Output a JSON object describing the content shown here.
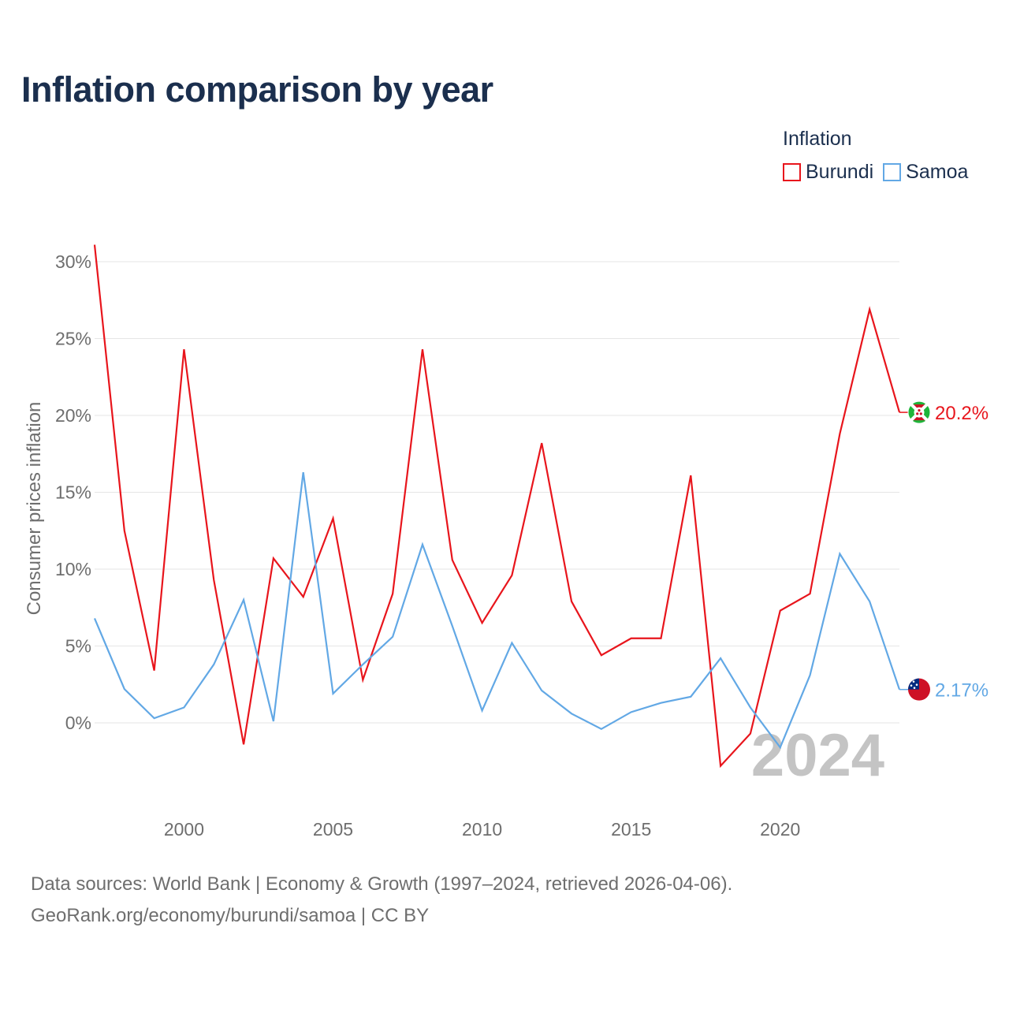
{
  "header": {
    "title": "Inflation comparison by year"
  },
  "legend": {
    "title": "Inflation",
    "items": [
      {
        "label": "Burundi",
        "color": "#e8151c"
      },
      {
        "label": "Samoa",
        "color": "#62a8e5"
      }
    ]
  },
  "footer": {
    "source": "Data sources: World Bank | Economy & Growth (1997–2024, retrieved 2026-04-06).",
    "credit": "GeoRank.org/economy/burundi/samoa | CC BY"
  },
  "chart_data": {
    "type": "line",
    "title": "Inflation comparison by year",
    "xlabel": "",
    "ylabel": "Consumer prices inflation",
    "x": [
      1997,
      1998,
      1999,
      2000,
      2001,
      2002,
      2003,
      2004,
      2005,
      2006,
      2007,
      2008,
      2009,
      2010,
      2011,
      2012,
      2013,
      2014,
      2015,
      2016,
      2017,
      2018,
      2019,
      2020,
      2021,
      2022,
      2023,
      2024
    ],
    "xticks": [
      "2000",
      "2005",
      "2010",
      "2015",
      "2020"
    ],
    "yticks": [
      "0%",
      "5%",
      "10%",
      "15%",
      "20%",
      "25%",
      "30%"
    ],
    "ylim": [
      -5.1,
      30
    ],
    "grid": true,
    "year_watermark": "2024",
    "series": [
      {
        "name": "Burundi",
        "color": "#e8151c",
        "end_label": "20.2%",
        "flag": "burundi-flag-icon",
        "values": [
          31.1,
          12.5,
          3.4,
          24.3,
          9.3,
          -1.4,
          10.7,
          8.2,
          13.3,
          2.8,
          8.4,
          24.3,
          10.6,
          6.5,
          9.6,
          18.2,
          7.9,
          4.4,
          5.5,
          5.5,
          16.1,
          -2.8,
          -0.7,
          7.3,
          8.4,
          18.8,
          26.9,
          20.2
        ]
      },
      {
        "name": "Samoa",
        "color": "#62a8e5",
        "end_label": "2.17%",
        "flag": "samoa-flag-icon",
        "values": [
          6.8,
          2.2,
          0.3,
          1.0,
          3.8,
          8.0,
          0.1,
          16.3,
          1.9,
          3.8,
          5.6,
          11.6,
          6.3,
          0.8,
          5.2,
          2.1,
          0.6,
          -0.4,
          0.7,
          1.3,
          1.7,
          4.2,
          1.0,
          -1.6,
          3.1,
          11.0,
          7.9,
          2.17
        ]
      }
    ]
  }
}
